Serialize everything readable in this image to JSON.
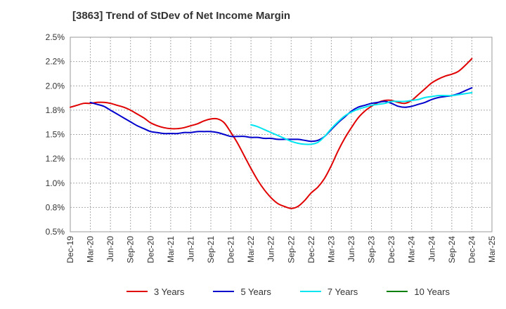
{
  "chart_data": {
    "type": "line",
    "title": "[3863]  Trend of StDev of Net Income Margin",
    "xlabel": "",
    "ylabel": "",
    "ylim": [
      0.5,
      2.5
    ],
    "y_ticks": [
      0.5,
      0.75,
      1.0,
      1.25,
      1.5,
      1.75,
      2.0,
      2.25,
      2.5
    ],
    "y_tick_labels": [
      "0.5%",
      "0.8%",
      "1.0%",
      "1.2%",
      "1.5%",
      "1.8%",
      "2.0%",
      "2.2%",
      "2.5%"
    ],
    "x_tick_labels": [
      "Dec-19",
      "Mar-20",
      "Jun-20",
      "Sep-20",
      "Dec-20",
      "Mar-21",
      "Jun-21",
      "Sep-21",
      "Dec-21",
      "Mar-22",
      "Jun-22",
      "Sep-22",
      "Dec-22",
      "Mar-23",
      "Jun-23",
      "Sep-23",
      "Dec-23",
      "Mar-24",
      "Jun-24",
      "Sep-24",
      "Dec-24",
      "Mar-25"
    ],
    "grid": true,
    "legend_position": "bottom",
    "series": [
      {
        "name": "3 Years",
        "color": "#e00000",
        "x": [
          "Dec-19",
          "Jan-20",
          "Feb-20",
          "Mar-20",
          "Apr-20",
          "May-20",
          "Jun-20",
          "Jul-20",
          "Aug-20",
          "Sep-20",
          "Oct-20",
          "Nov-20",
          "Dec-20",
          "Jan-21",
          "Feb-21",
          "Mar-21",
          "Apr-21",
          "May-21",
          "Jun-21",
          "Jul-21",
          "Aug-21",
          "Sep-21",
          "Oct-21",
          "Nov-21",
          "Dec-21",
          "Jan-22",
          "Feb-22",
          "Mar-22",
          "Apr-22",
          "May-22",
          "Jun-22",
          "Jul-22",
          "Aug-22",
          "Sep-22",
          "Oct-22",
          "Nov-22",
          "Dec-22",
          "Jan-23",
          "Feb-23",
          "Mar-23",
          "Apr-23",
          "May-23",
          "Jun-23",
          "Jul-23",
          "Aug-23",
          "Sep-23",
          "Oct-23",
          "Nov-23",
          "Dec-23",
          "Jan-24",
          "Feb-24",
          "Mar-24",
          "Apr-24",
          "May-24",
          "Jun-24",
          "Jul-24",
          "Aug-24",
          "Sep-24",
          "Oct-24",
          "Nov-24",
          "Dec-24"
        ],
        "values": [
          1.78,
          1.8,
          1.82,
          1.82,
          1.83,
          1.83,
          1.82,
          1.8,
          1.78,
          1.75,
          1.71,
          1.67,
          1.62,
          1.59,
          1.57,
          1.56,
          1.56,
          1.57,
          1.59,
          1.61,
          1.64,
          1.66,
          1.66,
          1.62,
          1.52,
          1.41,
          1.28,
          1.15,
          1.03,
          0.93,
          0.85,
          0.79,
          0.76,
          0.74,
          0.76,
          0.82,
          0.9,
          0.96,
          1.05,
          1.18,
          1.33,
          1.46,
          1.57,
          1.67,
          1.74,
          1.79,
          1.83,
          1.85,
          1.85,
          1.83,
          1.82,
          1.85,
          1.91,
          1.97,
          2.03,
          2.07,
          2.1,
          2.12,
          2.15,
          2.21,
          2.28
        ]
      },
      {
        "name": "5 Years",
        "color": "#0000cc",
        "x": [
          "Mar-20",
          "Apr-20",
          "May-20",
          "Jun-20",
          "Jul-20",
          "Aug-20",
          "Sep-20",
          "Oct-20",
          "Nov-20",
          "Dec-20",
          "Jan-21",
          "Feb-21",
          "Mar-21",
          "Apr-21",
          "May-21",
          "Jun-21",
          "Jul-21",
          "Aug-21",
          "Sep-21",
          "Oct-21",
          "Nov-21",
          "Dec-21",
          "Jan-22",
          "Feb-22",
          "Mar-22",
          "Apr-22",
          "May-22",
          "Jun-22",
          "Jul-22",
          "Aug-22",
          "Sep-22",
          "Oct-22",
          "Nov-22",
          "Dec-22",
          "Jan-23",
          "Feb-23",
          "Mar-23",
          "Apr-23",
          "May-23",
          "Jun-23",
          "Jul-23",
          "Aug-23",
          "Sep-23",
          "Oct-23",
          "Nov-23",
          "Dec-23",
          "Jan-24",
          "Feb-24",
          "Mar-24",
          "Apr-24",
          "May-24",
          "Jun-24",
          "Jul-24",
          "Aug-24",
          "Sep-24",
          "Oct-24",
          "Nov-24",
          "Dec-24"
        ],
        "values": [
          1.83,
          1.81,
          1.79,
          1.75,
          1.71,
          1.67,
          1.63,
          1.59,
          1.56,
          1.53,
          1.52,
          1.51,
          1.51,
          1.51,
          1.52,
          1.52,
          1.53,
          1.53,
          1.53,
          1.52,
          1.5,
          1.48,
          1.48,
          1.48,
          1.47,
          1.47,
          1.46,
          1.46,
          1.45,
          1.45,
          1.45,
          1.45,
          1.44,
          1.43,
          1.44,
          1.48,
          1.55,
          1.62,
          1.68,
          1.74,
          1.78,
          1.8,
          1.82,
          1.83,
          1.84,
          1.82,
          1.79,
          1.78,
          1.79,
          1.81,
          1.83,
          1.86,
          1.88,
          1.89,
          1.9,
          1.92,
          1.95,
          1.98
        ]
      },
      {
        "name": "7 Years",
        "color": "#00e5f0",
        "x": [
          "Mar-22",
          "Apr-22",
          "May-22",
          "Jun-22",
          "Jul-22",
          "Aug-22",
          "Sep-22",
          "Oct-22",
          "Nov-22",
          "Dec-22",
          "Jan-23",
          "Feb-23",
          "Mar-23",
          "Apr-23",
          "May-23",
          "Jun-23",
          "Jul-23",
          "Aug-23",
          "Sep-23",
          "Oct-23",
          "Nov-23",
          "Dec-23",
          "Jan-24",
          "Feb-24",
          "Mar-24",
          "Apr-24",
          "May-24",
          "Jun-24",
          "Jul-24",
          "Aug-24",
          "Sep-24",
          "Oct-24",
          "Nov-24",
          "Dec-24"
        ],
        "values": [
          1.6,
          1.58,
          1.55,
          1.52,
          1.49,
          1.46,
          1.43,
          1.41,
          1.4,
          1.4,
          1.42,
          1.48,
          1.56,
          1.63,
          1.69,
          1.73,
          1.76,
          1.78,
          1.8,
          1.81,
          1.82,
          1.84,
          1.84,
          1.84,
          1.85,
          1.86,
          1.88,
          1.89,
          1.9,
          1.9,
          1.9,
          1.91,
          1.92,
          1.93
        ]
      },
      {
        "name": "10 Years",
        "color": "#008000",
        "x": [],
        "values": []
      }
    ]
  }
}
